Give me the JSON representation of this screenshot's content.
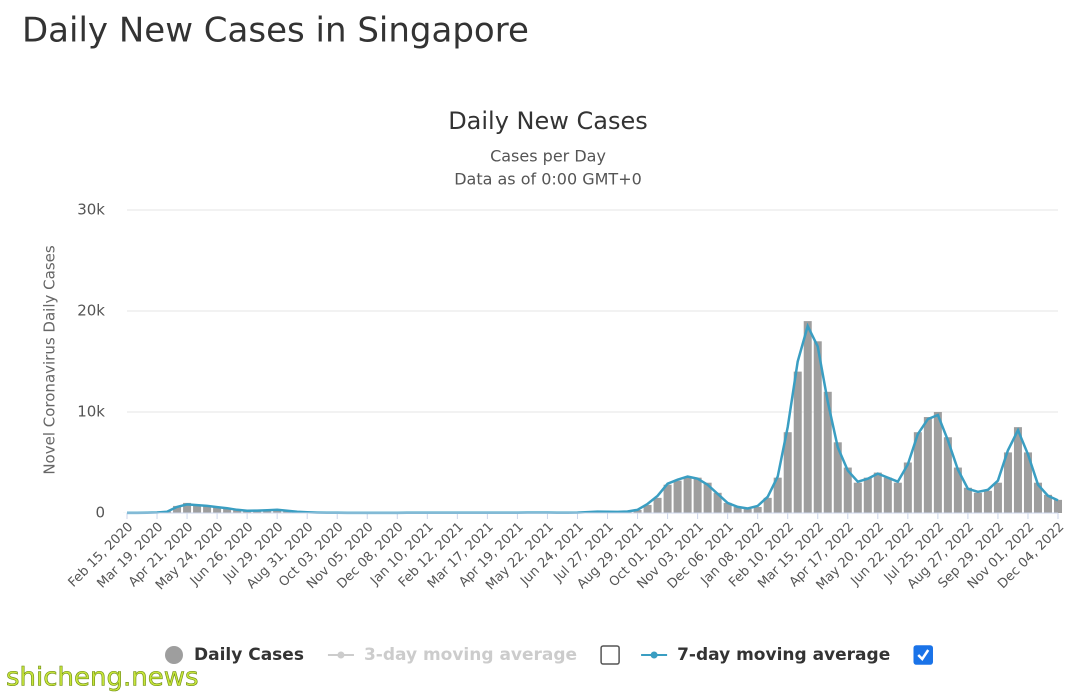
{
  "chart_data": {
    "type": "bar",
    "page_title": "Daily New Cases in Singapore",
    "title": "Daily New Cases",
    "subtitle": "Cases per Day",
    "subtitle2": "Data as of 0:00 GMT+0",
    "ylabel": "Novel Coronavirus Daily Cases",
    "watermark": "shicheng.news",
    "ylim": [
      0,
      30000
    ],
    "yticks": [
      0,
      {
        "value": 10000,
        "label": "10k"
      },
      {
        "value": 20000,
        "label": "20k"
      },
      {
        "value": 30000,
        "label": "30k"
      }
    ],
    "grid": true,
    "categories": [
      "Feb 15, 2020",
      null,
      null,
      "Mar 19, 2020",
      null,
      null,
      "Apr 21, 2020",
      null,
      null,
      "May 24, 2020",
      null,
      null,
      "Jun 26, 2020",
      null,
      null,
      "Jul 29, 2020",
      null,
      null,
      "Aug 31, 2020",
      null,
      null,
      "Oct 03, 2020",
      null,
      null,
      "Nov 05, 2020",
      null,
      null,
      "Dec 08, 2020",
      null,
      null,
      "Jan 10, 2021",
      null,
      null,
      "Feb 12, 2021",
      null,
      null,
      "Mar 17, 2021",
      null,
      null,
      "Apr 19, 2021",
      null,
      null,
      "May 22, 2021",
      null,
      null,
      "Jun 24, 2021",
      null,
      null,
      "Jul 27, 2021",
      null,
      null,
      "Aug 29, 2021",
      null,
      null,
      "Oct 01, 2021",
      null,
      null,
      "Nov 03, 2021",
      null,
      null,
      "Dec 06, 2021",
      null,
      null,
      "Jan 08, 2022",
      null,
      null,
      "Feb 10, 2022",
      null,
      null,
      "Mar 15, 2022",
      null,
      null,
      "Apr 17, 2022",
      null,
      null,
      "May 20, 2022",
      null,
      null,
      "Jun 22, 2022",
      null,
      null,
      "Jul 25, 2022",
      null,
      null,
      "Aug 27, 2022",
      null,
      null,
      "Sep 29, 2022",
      null,
      null,
      "Nov 01, 2022",
      null,
      null,
      "Dec 04, 2022"
    ],
    "series": [
      {
        "name": "Daily Cases",
        "type": "bar",
        "color": "#9e9e9e",
        "values": [
          5,
          10,
          30,
          50,
          150,
          700,
          1000,
          800,
          700,
          600,
          500,
          300,
          200,
          250,
          300,
          350,
          200,
          100,
          60,
          40,
          20,
          10,
          10,
          10,
          10,
          10,
          10,
          10,
          20,
          20,
          30,
          20,
          20,
          20,
          20,
          20,
          20,
          20,
          20,
          30,
          40,
          40,
          40,
          30,
          20,
          30,
          100,
          150,
          120,
          100,
          150,
          300,
          800,
          1500,
          2800,
          3200,
          3500,
          3500,
          3000,
          2000,
          1000,
          600,
          400,
          600,
          1500,
          3500,
          8000,
          14000,
          19000,
          17000,
          12000,
          7000,
          4500,
          3000,
          3500,
          4000,
          3500,
          3000,
          5000,
          8000,
          9500,
          10000,
          7500,
          4500,
          2500,
          2000,
          2200,
          3000,
          6000,
          8500,
          6000,
          3000,
          1800,
          1300
        ]
      },
      {
        "name": "7-day moving average",
        "type": "line",
        "color": "#3a9ec2",
        "values": [
          5,
          8,
          25,
          45,
          130,
          600,
          850,
          780,
          700,
          580,
          480,
          320,
          220,
          240,
          280,
          320,
          220,
          120,
          70,
          40,
          25,
          15,
          10,
          10,
          10,
          10,
          10,
          12,
          18,
          20,
          25,
          22,
          20,
          20,
          20,
          20,
          20,
          20,
          22,
          28,
          36,
          40,
          38,
          30,
          25,
          35,
          90,
          140,
          120,
          110,
          150,
          320,
          900,
          1700,
          2900,
          3300,
          3600,
          3400,
          2800,
          1900,
          1000,
          600,
          450,
          700,
          1600,
          3600,
          8500,
          15000,
          18500,
          16500,
          11000,
          6500,
          4200,
          3100,
          3400,
          3900,
          3500,
          3100,
          4800,
          7800,
          9300,
          9700,
          7200,
          4300,
          2400,
          2100,
          2300,
          3200,
          6200,
          8200,
          5800,
          2800,
          1700,
          1250
        ]
      }
    ],
    "legend": [
      {
        "label": "Daily Cases",
        "color": "#9e9e9e",
        "active": true
      },
      {
        "label": "3-day moving average",
        "color": "#cccccc",
        "active": false,
        "checked": false
      },
      {
        "label": "7-day moving average",
        "color": "#3a9ec2",
        "active": true,
        "checked": true
      }
    ]
  }
}
